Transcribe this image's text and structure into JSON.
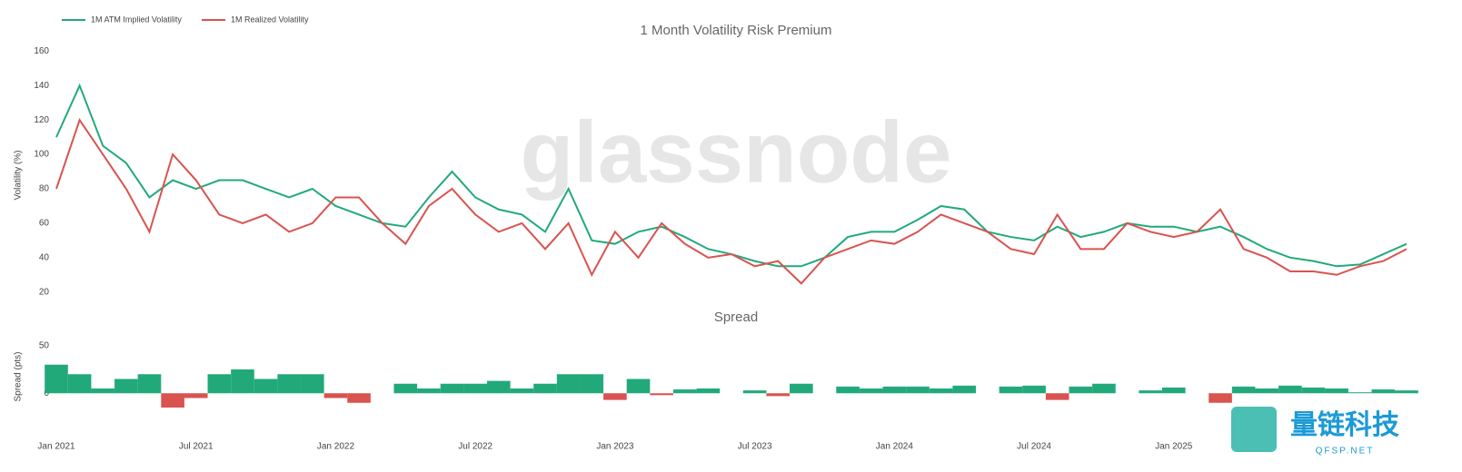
{
  "watermark": "glassnode",
  "logo_text": "量链科技",
  "logo_url": "QFSP.NET",
  "chart_data": [
    {
      "type": "line",
      "title": "1 Month Volatility Risk Premium",
      "y_label": "Volatility (%)",
      "x": [
        "2021-01",
        "2021-02",
        "2021-03",
        "2021-04",
        "2021-05",
        "2021-06",
        "2021-07",
        "2021-08",
        "2021-09",
        "2021-10",
        "2021-11",
        "2021-12",
        "2022-01",
        "2022-02",
        "2022-03",
        "2022-04",
        "2022-05",
        "2022-06",
        "2022-07",
        "2022-08",
        "2022-09",
        "2022-10",
        "2022-11",
        "2022-12",
        "2023-01",
        "2023-02",
        "2023-03",
        "2023-04",
        "2023-05",
        "2023-06",
        "2023-07",
        "2023-08",
        "2023-09",
        "2023-10",
        "2023-11",
        "2023-12",
        "2024-01",
        "2024-02",
        "2024-03",
        "2024-04",
        "2024-05",
        "2024-06",
        "2024-07",
        "2024-08",
        "2024-09",
        "2024-10",
        "2024-11",
        "2024-12",
        "2025-01",
        "2025-02",
        "2025-03",
        "2025-04",
        "2025-05",
        "2025-06",
        "2025-07",
        "2025-08",
        "2025-09",
        "2025-10",
        "2025-11"
      ],
      "series": [
        {
          "name": "1M ATM Implied Volatility",
          "color": "#22a97a",
          "values": [
            110,
            140,
            105,
            95,
            75,
            85,
            80,
            85,
            85,
            80,
            75,
            80,
            70,
            65,
            60,
            58,
            75,
            90,
            75,
            68,
            65,
            55,
            80,
            50,
            48,
            55,
            58,
            52,
            45,
            42,
            38,
            35,
            35,
            40,
            52,
            55,
            55,
            62,
            70,
            68,
            55,
            52,
            50,
            58,
            52,
            55,
            60,
            58,
            58,
            55,
            58,
            52,
            45,
            40,
            38,
            35,
            36,
            42,
            48
          ]
        },
        {
          "name": "1M Realized Volatility",
          "color": "#d9534f",
          "values": [
            80,
            120,
            100,
            80,
            55,
            100,
            85,
            65,
            60,
            65,
            55,
            60,
            75,
            75,
            60,
            48,
            70,
            80,
            65,
            55,
            60,
            45,
            60,
            30,
            55,
            40,
            60,
            48,
            40,
            42,
            35,
            38,
            25,
            40,
            45,
            50,
            48,
            55,
            65,
            60,
            55,
            45,
            42,
            65,
            45,
            45,
            60,
            55,
            52,
            55,
            68,
            45,
            40,
            32,
            32,
            30,
            35,
            38,
            45
          ]
        }
      ],
      "ylim": [
        13,
        166
      ],
      "yticks": [
        20,
        40,
        60,
        80,
        100,
        120,
        140,
        160
      ],
      "legend": "top-left"
    },
    {
      "type": "area",
      "title": "Spread",
      "y_label": "Spread (pts)",
      "pos_color": "#22a97a",
      "neg_color": "#d9534f",
      "x": [
        "2021-01",
        "2021-02",
        "2021-03",
        "2021-04",
        "2021-05",
        "2021-06",
        "2021-07",
        "2021-08",
        "2021-09",
        "2021-10",
        "2021-11",
        "2021-12",
        "2022-01",
        "2022-02",
        "2022-03",
        "2022-04",
        "2022-05",
        "2022-06",
        "2022-07",
        "2022-08",
        "2022-09",
        "2022-10",
        "2022-11",
        "2022-12",
        "2023-01",
        "2023-02",
        "2023-03",
        "2023-04",
        "2023-05",
        "2023-06",
        "2023-07",
        "2023-08",
        "2023-09",
        "2023-10",
        "2023-11",
        "2023-12",
        "2024-01",
        "2024-02",
        "2024-03",
        "2024-04",
        "2024-05",
        "2024-06",
        "2024-07",
        "2024-08",
        "2024-09",
        "2024-10",
        "2024-11",
        "2024-12",
        "2025-01",
        "2025-02",
        "2025-03",
        "2025-04",
        "2025-05",
        "2025-06",
        "2025-07",
        "2025-08",
        "2025-09",
        "2025-10",
        "2025-11"
      ],
      "values": [
        30,
        20,
        5,
        15,
        20,
        -15,
        -5,
        20,
        25,
        15,
        20,
        20,
        -5,
        -10,
        0,
        10,
        5,
        10,
        10,
        13,
        5,
        10,
        20,
        20,
        -7,
        15,
        -2,
        4,
        5,
        0,
        3,
        -3,
        10,
        0,
        7,
        5,
        7,
        7,
        5,
        8,
        0,
        7,
        8,
        -7,
        7,
        10,
        0,
        3,
        6,
        0,
        -10,
        7,
        5,
        8,
        6,
        5,
        1,
        4,
        3
      ],
      "ylim": [
        -35,
        65
      ],
      "yticks": [
        0,
        50
      ],
      "xticks": [
        {
          "value": "2021-01",
          "label": "Jan 2021"
        },
        {
          "value": "2021-07",
          "label": "Jul 2021"
        },
        {
          "value": "2022-01",
          "label": "Jan 2022"
        },
        {
          "value": "2022-07",
          "label": "Jul 2022"
        },
        {
          "value": "2023-01",
          "label": "Jan 2023"
        },
        {
          "value": "2023-07",
          "label": "Jul 2023"
        },
        {
          "value": "2024-01",
          "label": "Jan 2024"
        },
        {
          "value": "2024-07",
          "label": "Jul 2024"
        },
        {
          "value": "2025-01",
          "label": "Jan 2025"
        }
      ]
    }
  ]
}
